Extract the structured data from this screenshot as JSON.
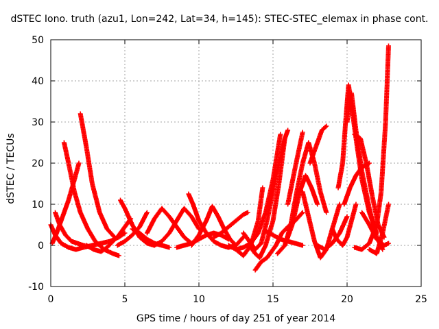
{
  "chart_data": {
    "type": "scatter",
    "title": "dSTEC Iono. truth (azu1, Lon=242, Lat=34, h=145): STEC-STEC_elemax in phase cont.",
    "xlabel": "GPS time / hours of day 251 of year 2014",
    "ylabel": "dSTEC  / TECUs",
    "xlim": [
      0,
      25
    ],
    "ylim": [
      -10,
      50
    ],
    "xticks": [
      "0",
      "5",
      "10",
      "15",
      "20",
      "25"
    ],
    "yticks": [
      "-10",
      "0",
      "10",
      "20",
      "30",
      "40",
      "50"
    ],
    "grid": true,
    "marker": "+",
    "color": "#ff0000",
    "series": [
      {
        "x": [
          0.0,
          0.3,
          0.7,
          1.2,
          1.7,
          2.2,
          2.8,
          3.4,
          4.0,
          4.6,
          5.0
        ],
        "y": [
          5.0,
          2.5,
          0.5,
          -0.5,
          -1.0,
          -0.5,
          0.0,
          0.5,
          1.0,
          2.0,
          3.0
        ]
      },
      {
        "x": [
          0.1,
          0.4,
          0.8,
          1.2,
          1.6,
          1.9
        ],
        "y": [
          0.5,
          3.0,
          7.0,
          11.0,
          16.0,
          20.0
        ]
      },
      {
        "x": [
          0.3,
          0.6,
          1.0,
          1.4,
          1.8,
          2.2,
          2.6
        ],
        "y": [
          8.0,
          5.0,
          2.5,
          1.0,
          0.5,
          0.0,
          -0.3
        ]
      },
      {
        "x": [
          0.9,
          1.2,
          1.6,
          2.0,
          2.5,
          3.0,
          3.6,
          4.2,
          4.6
        ],
        "y": [
          25.0,
          20.0,
          13.0,
          8.0,
          4.0,
          1.0,
          -1.0,
          -2.0,
          -2.5
        ]
      },
      {
        "x": [
          2.0,
          2.4,
          2.8,
          3.3,
          3.8,
          4.3
        ],
        "y": [
          32.0,
          24.0,
          15.0,
          8.0,
          4.0,
          2.0
        ]
      },
      {
        "x": [
          2.4,
          2.9,
          3.4,
          3.8,
          4.2,
          4.6,
          5.0,
          5.4
        ],
        "y": [
          0.0,
          -1.0,
          -1.5,
          -0.5,
          1.0,
          2.5,
          4.5,
          6.5
        ]
      },
      {
        "x": [
          4.7,
          5.0,
          5.5,
          6.0,
          6.5,
          7.0
        ],
        "y": [
          11.0,
          9.0,
          5.0,
          2.0,
          0.5,
          0.0
        ]
      },
      {
        "x": [
          4.5,
          5.0,
          5.5,
          6.0,
          6.5
        ],
        "y": [
          0.0,
          1.0,
          2.5,
          4.5,
          8.0
        ]
      },
      {
        "x": [
          5.5,
          6.0,
          6.5,
          7.0,
          7.5,
          8.0
        ],
        "y": [
          4.0,
          3.0,
          1.5,
          0.5,
          0.0,
          -0.5
        ]
      },
      {
        "x": [
          6.5,
          7.0,
          7.5,
          8.0,
          8.5,
          9.0,
          9.5
        ],
        "y": [
          3.0,
          6.5,
          9.0,
          7.0,
          4.5,
          2.0,
          0.5
        ]
      },
      {
        "x": [
          7.0,
          7.5,
          8.0,
          8.5,
          9.0,
          9.5,
          10.0
        ],
        "y": [
          0.0,
          1.0,
          3.0,
          6.0,
          9.0,
          7.0,
          4.0
        ]
      },
      {
        "x": [
          8.5,
          9.0,
          9.5,
          10.0,
          10.5,
          11.0,
          11.5,
          12.0
        ],
        "y": [
          -0.5,
          0.0,
          0.5,
          1.5,
          2.5,
          3.0,
          2.5,
          1.5
        ]
      },
      {
        "x": [
          9.3,
          9.6,
          10.0,
          10.5,
          11.0,
          11.5,
          12.0,
          12.5,
          13.0
        ],
        "y": [
          12.5,
          10.0,
          6.0,
          3.0,
          1.0,
          0.0,
          -0.5,
          0.0,
          2.0
        ]
      },
      {
        "x": [
          9.5,
          10.0,
          10.5,
          10.9,
          11.3,
          11.7,
          12.1,
          12.5
        ],
        "y": [
          0.0,
          2.5,
          6.0,
          9.5,
          7.0,
          4.0,
          1.5,
          0.0
        ]
      },
      {
        "x": [
          11.0,
          11.5,
          12.0,
          12.5,
          13.0,
          13.3
        ],
        "y": [
          2.0,
          3.0,
          4.5,
          6.0,
          7.5,
          8.0
        ]
      },
      {
        "x": [
          12.0,
          12.5,
          13.0,
          13.5,
          14.0,
          14.3
        ],
        "y": [
          0.0,
          -1.0,
          -2.5,
          0.0,
          6.0,
          14.0
        ]
      },
      {
        "x": [
          12.5,
          13.0,
          13.5,
          14.0,
          14.5,
          15.0,
          15.5
        ],
        "y": [
          -1.0,
          -0.5,
          0.5,
          3.0,
          8.0,
          16.0,
          27.0
        ]
      },
      {
        "x": [
          13.0,
          13.5,
          13.8,
          14.2,
          14.6,
          15.0,
          15.4,
          15.8,
          16.0
        ],
        "y": [
          3.0,
          0.5,
          -1.0,
          0.5,
          6.0,
          13.0,
          20.0,
          26.0,
          28.0
        ]
      },
      {
        "x": [
          13.4,
          13.8,
          14.1,
          14.5,
          15.0,
          15.4,
          15.8
        ],
        "y": [
          0.0,
          -2.0,
          -3.0,
          0.0,
          6.0,
          15.0,
          26.0
        ]
      },
      {
        "x": [
          13.8,
          14.2,
          14.6,
          15.2,
          15.6,
          16.0,
          16.5,
          17.0
        ],
        "y": [
          -6.0,
          -4.0,
          -3.0,
          0.0,
          3.0,
          4.5,
          6.0,
          8.0
        ]
      },
      {
        "x": [
          14.5,
          15.0,
          15.5,
          16.0,
          16.5,
          17.0
        ],
        "y": [
          3.5,
          2.5,
          1.5,
          1.0,
          0.5,
          0.0
        ]
      },
      {
        "x": [
          15.3,
          15.8,
          16.3,
          16.8,
          17.2,
          17.6,
          18.0
        ],
        "y": [
          -2.0,
          0.0,
          5.0,
          13.0,
          17.0,
          14.0,
          10.0
        ]
      },
      {
        "x": [
          15.8,
          16.2,
          16.6,
          17.0,
          17.4,
          17.8,
          18.2,
          18.6
        ],
        "y": [
          0.0,
          5.0,
          13.0,
          20.0,
          25.0,
          20.0,
          13.0,
          8.0
        ]
      },
      {
        "x": [
          16.0,
          16.5,
          17.0
        ],
        "y": [
          10.0,
          19.0,
          27.5
        ]
      },
      {
        "x": [
          17.0,
          17.4,
          17.8,
          18.2,
          18.6,
          19.0,
          19.5
        ],
        "y": [
          13.0,
          7.0,
          1.0,
          -3.0,
          -1.0,
          4.0,
          10.0
        ]
      },
      {
        "x": [
          17.5,
          18.0,
          18.3,
          18.6
        ],
        "y": [
          20.0,
          25.0,
          28.0,
          29.0
        ]
      },
      {
        "x": [
          18.0,
          18.5,
          19.0,
          19.5,
          20.0
        ],
        "y": [
          0.0,
          -1.0,
          0.5,
          3.0,
          7.0
        ]
      },
      {
        "x": [
          19.0,
          19.3,
          19.7,
          20.0,
          20.3,
          20.6
        ],
        "y": [
          4.0,
          1.5,
          0.0,
          2.0,
          6.0,
          10.0
        ]
      },
      {
        "x": [
          19.4,
          19.7,
          19.9,
          20.1,
          20.3,
          20.6,
          21.0,
          21.5,
          22.0
        ],
        "y": [
          14.0,
          20.0,
          30.0,
          39.0,
          34.0,
          26.0,
          16.0,
          8.0,
          3.0
        ]
      },
      {
        "x": [
          20.0,
          20.3,
          20.6,
          21.0,
          21.5,
          22.0,
          22.4
        ],
        "y": [
          30.0,
          37.0,
          28.0,
          18.0,
          9.0,
          2.0,
          -1.0
        ]
      },
      {
        "x": [
          19.8,
          20.2,
          20.6,
          21.0,
          21.5
        ],
        "y": [
          10.0,
          14.0,
          17.0,
          19.0,
          20.0
        ]
      },
      {
        "x": [
          20.5,
          20.9,
          21.3,
          21.7,
          22.1,
          22.5
        ],
        "y": [
          27.0,
          26.0,
          20.0,
          12.0,
          5.0,
          2.0
        ]
      },
      {
        "x": [
          20.5,
          21.0,
          21.5,
          22.0,
          22.3,
          22.6,
          22.8
        ],
        "y": [
          -0.5,
          -1.0,
          0.5,
          5.0,
          13.0,
          30.0,
          48.5
        ]
      },
      {
        "x": [
          21.0,
          21.5,
          22.0,
          22.5,
          22.8
        ],
        "y": [
          8.0,
          5.0,
          1.5,
          0.0,
          0.5
        ]
      },
      {
        "x": [
          21.5,
          22.0,
          22.4,
          22.8
        ],
        "y": [
          -1.0,
          -2.0,
          3.0,
          10.0
        ]
      }
    ]
  }
}
